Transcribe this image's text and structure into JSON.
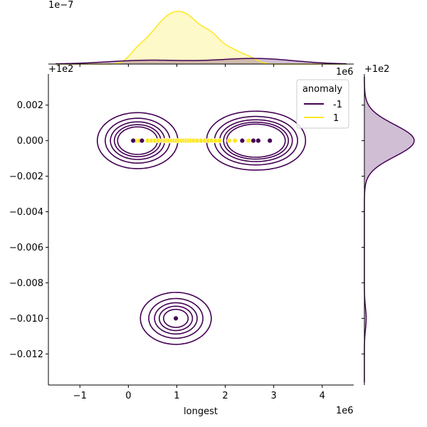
{
  "chart_data": {
    "type": "scatter",
    "title": "",
    "xlabel": "longest",
    "ylabel": "",
    "x_offset_text": "1e6",
    "y_offset_text": "+1e2",
    "top_marginal_scale_text": "1e−7",
    "top_marginal_x_offset_text": "1e6",
    "right_marginal_offset_text": "+1e2",
    "xlim": [
      -1.65,
      4.65
    ],
    "ylim": [
      -0.01375,
      0.00375
    ],
    "x_ticks": [
      -1,
      0,
      1,
      2,
      3,
      4
    ],
    "x_tick_labels": [
      "−1",
      "0",
      "1",
      "2",
      "3",
      "4"
    ],
    "y_ticks": [
      0.002,
      0.0,
      -0.002,
      -0.004,
      -0.006,
      -0.008,
      -0.01,
      -0.012
    ],
    "y_tick_labels": [
      "0.002",
      "0.000",
      "−0.002",
      "−0.004",
      "−0.006",
      "−0.008",
      "−0.010",
      "−0.012"
    ],
    "grid": false,
    "legend": {
      "title": "anomaly",
      "placement": "upper-right",
      "entries": [
        {
          "label": "-1",
          "color": "#440154"
        },
        {
          "label": "1",
          "color": "#fde725"
        }
      ]
    },
    "series": [
      {
        "name": "1",
        "color": "#fde725",
        "x": [
          0.15,
          0.22,
          0.4,
          0.48,
          0.55,
          0.62,
          0.7,
          0.75,
          0.8,
          0.85,
          0.9,
          0.95,
          1.0,
          1.05,
          1.1,
          1.15,
          1.2,
          1.25,
          1.3,
          1.35,
          1.42,
          1.5,
          1.58,
          1.65,
          1.72,
          1.8,
          1.88,
          2.08,
          2.2,
          2.48
        ],
        "y": [
          0,
          0,
          0,
          0,
          0,
          0,
          0,
          0,
          0,
          0,
          0,
          0,
          0,
          0,
          0,
          0,
          0,
          0,
          0,
          0,
          0,
          0,
          0,
          0,
          0,
          0,
          0,
          0,
          0,
          0
        ]
      },
      {
        "name": "-1",
        "color": "#440154",
        "x": [
          0.1,
          0.28,
          2.35,
          2.58,
          2.68,
          2.92,
          0.98
        ],
        "y": [
          0,
          0,
          0,
          0,
          0,
          0,
          -0.01
        ]
      }
    ],
    "kde_contours_series": "-1",
    "top_marginal_peak_series": "1",
    "right_marginal_series": "-1"
  }
}
